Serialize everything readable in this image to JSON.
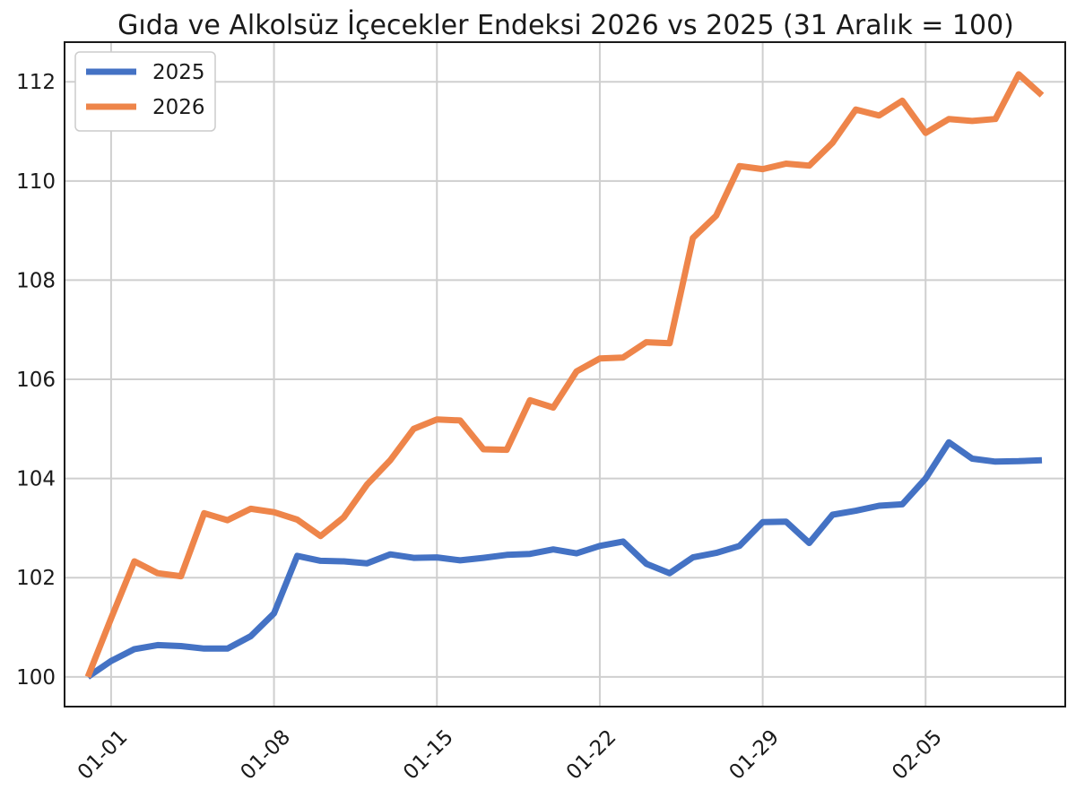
{
  "chart_data": {
    "type": "line",
    "title": "Gıda ve Alkolsüz İçecekler Endeksi 2026 vs 2025 (31 Aralık = 100)",
    "xlabel": "",
    "ylabel": "",
    "x_start_day": -1,
    "xlim": [
      -2,
      41
    ],
    "ylim": [
      99.4,
      112.8
    ],
    "x_ticks": [
      {
        "day": 0,
        "label": "01-01"
      },
      {
        "day": 7,
        "label": "01-08"
      },
      {
        "day": 14,
        "label": "01-15"
      },
      {
        "day": 21,
        "label": "01-22"
      },
      {
        "day": 28,
        "label": "01-29"
      },
      {
        "day": 35,
        "label": "02-05"
      }
    ],
    "y_ticks": [
      100,
      102,
      104,
      106,
      108,
      110,
      112
    ],
    "grid": true,
    "legend_position": "top-left",
    "series": [
      {
        "name": "2025",
        "color": "#4472c4",
        "values": [
          100.0,
          100.32,
          100.56,
          100.64,
          100.62,
          100.57,
          100.57,
          100.82,
          101.28,
          102.44,
          102.34,
          102.33,
          102.29,
          102.47,
          102.4,
          102.41,
          102.35,
          102.4,
          102.46,
          102.48,
          102.57,
          102.49,
          102.64,
          102.73,
          102.28,
          102.09,
          102.41,
          102.5,
          102.64,
          103.12,
          103.13,
          102.7,
          103.27,
          103.35,
          103.45,
          103.48,
          104.0,
          104.73,
          104.4,
          104.34,
          104.35,
          104.37
        ]
      },
      {
        "name": "2026",
        "color": "#ee854a",
        "values": [
          100.0,
          101.18,
          102.33,
          102.09,
          102.03,
          103.3,
          103.16,
          103.39,
          103.32,
          103.17,
          102.84,
          103.22,
          103.88,
          104.37,
          105.0,
          105.19,
          105.17,
          104.59,
          104.58,
          105.58,
          105.43,
          106.16,
          106.42,
          106.44,
          106.75,
          106.73,
          108.85,
          109.3,
          110.3,
          110.24,
          110.35,
          110.31,
          110.77,
          111.44,
          111.32,
          111.62,
          110.97,
          111.25,
          111.21,
          111.25,
          112.15,
          111.73
        ]
      }
    ]
  }
}
